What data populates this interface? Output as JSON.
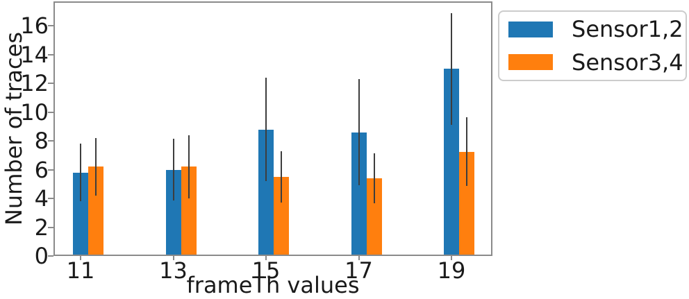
{
  "chart_data": {
    "type": "bar",
    "title": "",
    "xlabel": "frameTh values",
    "ylabel": "Number of traces",
    "categories": [
      "11",
      "13",
      "15",
      "17",
      "19"
    ],
    "series": [
      {
        "name": "Sensor1,2",
        "color": "#1f77b4",
        "values": [
          5.8,
          6.0,
          8.8,
          8.6,
          13.0
        ],
        "errors": [
          2.0,
          2.15,
          3.6,
          3.7,
          3.9
        ]
      },
      {
        "name": "Sensor3,4",
        "color": "#ff7f0e",
        "values": [
          6.2,
          6.2,
          5.5,
          5.4,
          7.25
        ],
        "errors": [
          2.0,
          2.2,
          1.8,
          1.75,
          2.4
        ]
      }
    ],
    "ylim": [
      0,
      17.7
    ],
    "yticks": [
      0,
      2,
      4,
      6,
      8,
      10,
      12,
      14,
      16
    ],
    "grid": false,
    "legend_position": "upper-right-outside",
    "error_bar_color": "#3d3d3d",
    "axis_color": "#8a8a8a",
    "text_color": "#1a1a1a"
  }
}
